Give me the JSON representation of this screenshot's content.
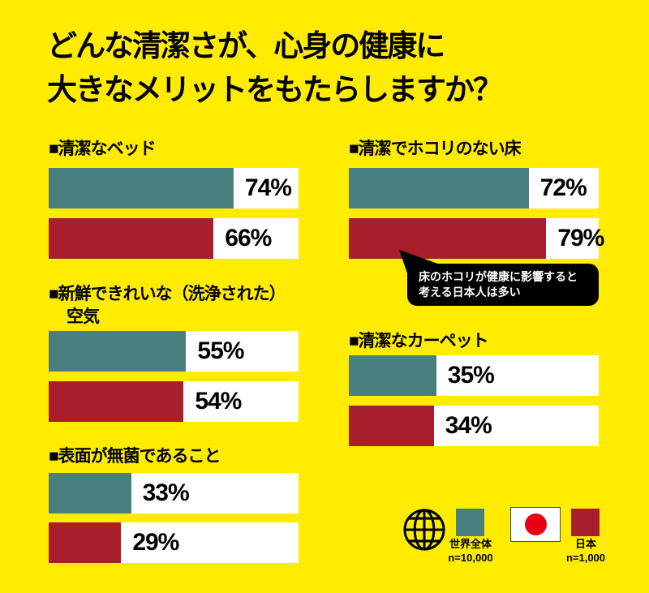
{
  "title": {
    "line1": "どんな清潔さが、心身の健康に",
    "line2": "大きなメリットをもたらしますか？"
  },
  "colors": {
    "background": "#FFEC00",
    "world": "#47807E",
    "japan": "#A81E2B",
    "bubble": "#000000",
    "bubble_text": "#FFFFFF",
    "flag_red": "#E60012",
    "text": "#000000",
    "track": "#FFFFFF"
  },
  "sections": [
    {
      "label": "■清潔なベッド",
      "world": {
        "pct": 74,
        "label": "74%"
      },
      "japan": {
        "pct": 66,
        "label": "66%"
      }
    },
    {
      "label": "■清潔でホコリのない床",
      "world": {
        "pct": 72,
        "label": "72%"
      },
      "japan": {
        "pct": 79,
        "label": "79%"
      },
      "callout": {
        "line1": "床のホコリが健康に影響すると",
        "line2": "考える日本人は多い"
      }
    },
    {
      "label": "■新鮮できれいな（洗浄された）",
      "label2": "空気",
      "world": {
        "pct": 55,
        "label": "55%"
      },
      "japan": {
        "pct": 54,
        "label": "54%"
      }
    },
    {
      "label": "■清潔なカーペット",
      "world": {
        "pct": 35,
        "label": "35%"
      },
      "japan": {
        "pct": 34,
        "label": "34%"
      }
    },
    {
      "label": "■表面が無菌であること",
      "world": {
        "pct": 33,
        "label": "33%"
      },
      "japan": {
        "pct": 29,
        "label": "29%"
      }
    }
  ],
  "legend": {
    "world": {
      "icon": "globe-icon",
      "label": "世界全体",
      "sample": "n=10,000"
    },
    "japan": {
      "icon": "japan-flag-icon",
      "label": "日本",
      "sample": "n=1,000"
    }
  },
  "chart_data": {
    "type": "bar",
    "orientation": "horizontal",
    "title": "どんな清潔さが、心身の健康に大きなメリットをもたらしますか？",
    "categories": [
      "清潔なベッド",
      "清潔でホコリのない床",
      "新鮮できれいな（洗浄された）空気",
      "清潔なカーペット",
      "表面が無菌であること"
    ],
    "series": [
      {
        "name": "世界全体 n=10,000",
        "color": "#47807E",
        "values": [
          74,
          72,
          55,
          35,
          33
        ]
      },
      {
        "name": "日本 n=1,000",
        "color": "#A81E2B",
        "values": [
          66,
          79,
          54,
          34,
          29
        ]
      }
    ],
    "unit": "%",
    "xlim": [
      0,
      100
    ],
    "grid": false,
    "legend_position": "bottom-right",
    "annotations": [
      {
        "target": "清潔でホコリのない床 / 日本 79%",
        "text": "床のホコリが健康に影響すると考える日本人は多い"
      }
    ]
  }
}
